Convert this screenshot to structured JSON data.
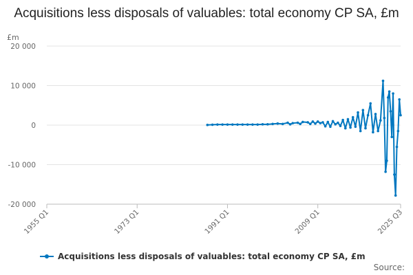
{
  "chart_data": {
    "type": "line",
    "title": "Acquisitions less disposals of valuables: total economy CP SA, £m",
    "unit_label": "£m",
    "ylim": [
      -20000,
      20000
    ],
    "y_ticks": [
      20000,
      10000,
      0,
      -10000,
      -20000
    ],
    "y_tick_labels": [
      "20 000",
      "10 000",
      "0",
      "-10 000",
      "-20 000"
    ],
    "x_tick_labels": [
      "1955 Q1",
      "1973 Q1",
      "1991 Q1",
      "2009 Q1",
      "2025 Q3"
    ],
    "xlim": [
      "1955 Q1",
      "2025 Q3"
    ],
    "grid": true,
    "legend_position": "bottom",
    "source_label": "Source:",
    "color": "#0077c0",
    "series": [
      {
        "name": "Acquisitions less disposals of valuables: total economy CP SA, £m",
        "points": [
          [
            "1987 Q1",
            50
          ],
          [
            "1988 Q1",
            100
          ],
          [
            "1989 Q1",
            150
          ],
          [
            "1990 Q1",
            150
          ],
          [
            "1991 Q1",
            150
          ],
          [
            "1992 Q1",
            150
          ],
          [
            "1993 Q1",
            150
          ],
          [
            "1994 Q1",
            150
          ],
          [
            "1995 Q1",
            150
          ],
          [
            "1996 Q1",
            150
          ],
          [
            "1997 Q1",
            150
          ],
          [
            "1998 Q1",
            200
          ],
          [
            "1999 Q1",
            200
          ],
          [
            "2000 Q1",
            300
          ],
          [
            "2001 Q1",
            400
          ],
          [
            "2002 Q1",
            300
          ],
          [
            "2003 Q1",
            600
          ],
          [
            "2003 Q3",
            200
          ],
          [
            "2004 Q1",
            500
          ],
          [
            "2005 Q1",
            600
          ],
          [
            "2005 Q3",
            300
          ],
          [
            "2006 Q1",
            800
          ],
          [
            "2007 Q1",
            700
          ],
          [
            "2007 Q3",
            300
          ],
          [
            "2008 Q1",
            900
          ],
          [
            "2008 Q3",
            400
          ],
          [
            "2009 Q1",
            900
          ],
          [
            "2009 Q3",
            500
          ],
          [
            "2010 Q1",
            700
          ],
          [
            "2010 Q3",
            -300
          ],
          [
            "2011 Q1",
            800
          ],
          [
            "2011 Q3",
            -400
          ],
          [
            "2012 Q1",
            1000
          ],
          [
            "2012 Q3",
            200
          ],
          [
            "2013 Q1",
            600
          ],
          [
            "2013 Q3",
            -200
          ],
          [
            "2014 Q1",
            1300
          ],
          [
            "2014 Q3",
            -800
          ],
          [
            "2015 Q1",
            1500
          ],
          [
            "2015 Q3",
            -600
          ],
          [
            "2016 Q1",
            2000
          ],
          [
            "2016 Q3",
            -400
          ],
          [
            "2017 Q1",
            3200
          ],
          [
            "2017 Q3",
            -1500
          ],
          [
            "2018 Q1",
            3800
          ],
          [
            "2018 Q3",
            -800
          ],
          [
            "2019 Q1",
            2500
          ],
          [
            "2019 Q3",
            5500
          ],
          [
            "2020 Q1",
            -1800
          ],
          [
            "2020 Q3",
            2800
          ],
          [
            "2021 Q1",
            -1500
          ],
          [
            "2021 Q3",
            1200
          ],
          [
            "2022 Q1",
            11200
          ],
          [
            "2022 Q2",
            1800
          ],
          [
            "2022 Q3",
            -11800
          ],
          [
            "2022 Q4",
            -9000
          ],
          [
            "2023 Q1",
            7000
          ],
          [
            "2023 Q2",
            8500
          ],
          [
            "2023 Q3",
            3500
          ],
          [
            "2023 Q4",
            -3000
          ],
          [
            "2024 Q1",
            8000
          ],
          [
            "2024 Q2",
            -12500
          ],
          [
            "2024 Q3",
            -17800
          ],
          [
            "2024 Q4",
            -5500
          ],
          [
            "2025 Q1",
            -1500
          ],
          [
            "2025 Q2",
            6500
          ],
          [
            "2025 Q3",
            2500
          ]
        ]
      }
    ]
  }
}
